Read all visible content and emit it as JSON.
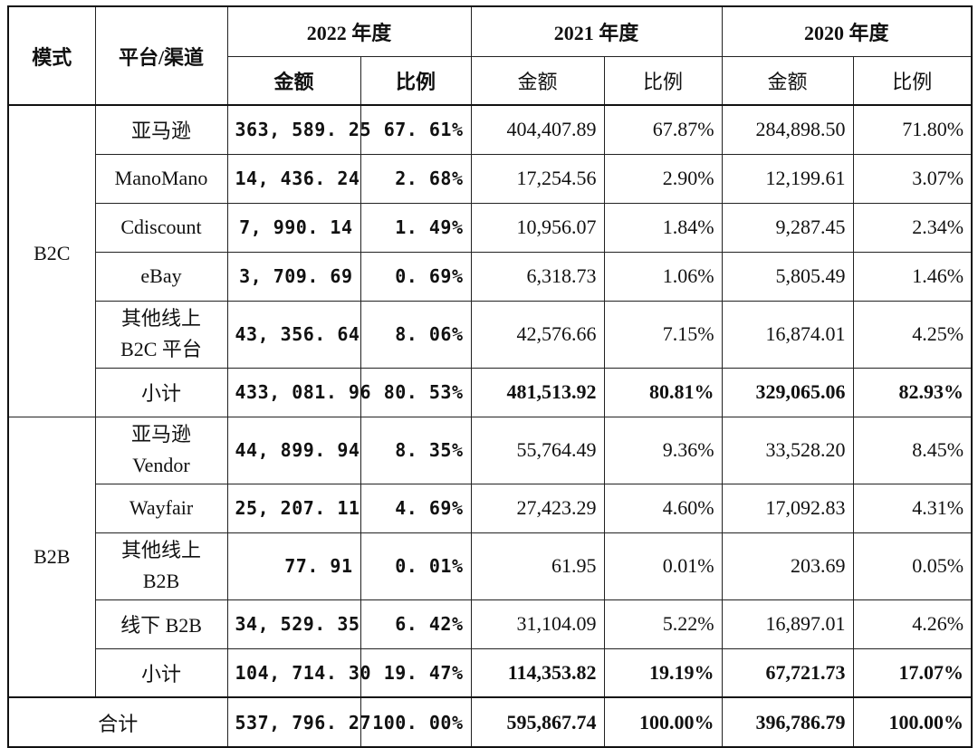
{
  "header": {
    "mode": "模式",
    "channel": "平台/渠道",
    "y2022": "2022 年度",
    "y2021": "2021 年度",
    "y2020": "2020 年度",
    "amount": "金额",
    "ratio": "比例"
  },
  "groups": {
    "b2c": "B2C",
    "b2b": "B2B"
  },
  "rows": [
    {
      "platform": "亚马逊",
      "a22": "363, 589. 25",
      "r22": "67. 61%",
      "a21": "404,407.89",
      "r21": "67.87%",
      "a20": "284,898.50",
      "r20": "71.80%"
    },
    {
      "platform": "ManoMano",
      "a22": "14, 436. 24",
      "r22": "2. 68%",
      "a21": "17,254.56",
      "r21": "2.90%",
      "a20": "12,199.61",
      "r20": "3.07%"
    },
    {
      "platform": "Cdiscount",
      "a22": "7, 990. 14",
      "r22": "1. 49%",
      "a21": "10,956.07",
      "r21": "1.84%",
      "a20": "9,287.45",
      "r20": "2.34%"
    },
    {
      "platform": "eBay",
      "a22": "3, 709. 69",
      "r22": "0. 69%",
      "a21": "6,318.73",
      "r21": "1.06%",
      "a20": "5,805.49",
      "r20": "1.46%"
    },
    {
      "platform_l1": "其他线上",
      "platform_l2": "B2C 平台",
      "a22": "43, 356. 64",
      "r22": "8. 06%",
      "a21": "42,576.66",
      "r21": "7.15%",
      "a20": "16,874.01",
      "r20": "4.25%"
    },
    {
      "platform": "小计",
      "a22": "433, 081. 96",
      "r22": "80. 53%",
      "a21": "481,513.92",
      "r21": "80.81%",
      "a20": "329,065.06",
      "r20": "82.93%"
    },
    {
      "platform_l1": "亚马逊",
      "platform_l2": "Vendor",
      "a22": "44, 899. 94",
      "r22": "8. 35%",
      "a21": "55,764.49",
      "r21": "9.36%",
      "a20": "33,528.20",
      "r20": "8.45%"
    },
    {
      "platform": "Wayfair",
      "a22": "25, 207. 11",
      "r22": "4. 69%",
      "a21": "27,423.29",
      "r21": "4.60%",
      "a20": "17,092.83",
      "r20": "4.31%"
    },
    {
      "platform_l1": "其他线上",
      "platform_l2": "B2B",
      "a22": "77. 91",
      "r22": "0. 01%",
      "a21": "61.95",
      "r21": "0.01%",
      "a20": "203.69",
      "r20": "0.05%"
    },
    {
      "platform": "线下 B2B",
      "a22": "34, 529. 35",
      "r22": "6. 42%",
      "a21": "31,104.09",
      "r21": "5.22%",
      "a20": "16,897.01",
      "r20": "4.26%"
    },
    {
      "platform": "小计",
      "a22": "104, 714. 30",
      "r22": "19. 47%",
      "a21": "114,353.82",
      "r21": "19.19%",
      "a20": "67,721.73",
      "r20": "17.07%"
    }
  ],
  "total": {
    "label": "合计",
    "a22": "537, 796. 27",
    "r22": "100. 00%",
    "a21": "595,867.74",
    "r21": "100.00%",
    "a20": "396,786.79",
    "r20": "100.00%"
  }
}
